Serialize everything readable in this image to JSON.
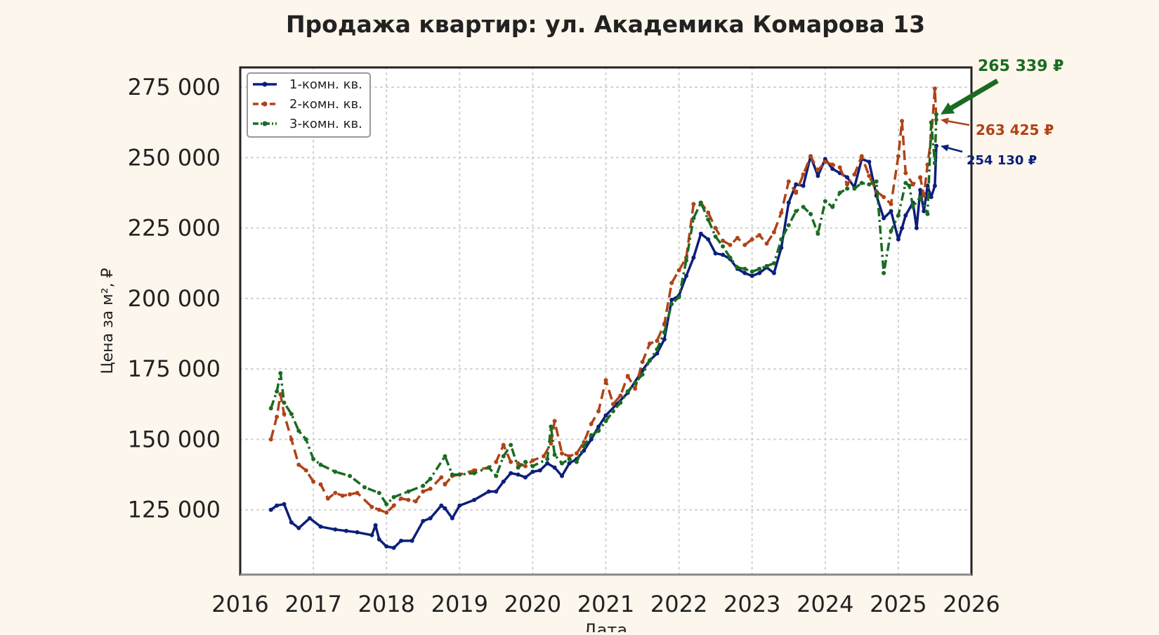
{
  "chart_data": {
    "type": "line",
    "title": "Продажа квартир: ул. Академика Комарова 13",
    "xlabel": "Дата",
    "ylabel": "Цена за м², ₽",
    "xlim": [
      2016,
      2026
    ],
    "ylim": [
      102000,
      282000
    ],
    "x_ticks": [
      "2016",
      "2017",
      "2018",
      "2019",
      "2020",
      "2021",
      "2022",
      "2023",
      "2024",
      "2025",
      "2026"
    ],
    "y_ticks": [
      "125 000",
      "150 000",
      "175 000",
      "200 000",
      "225 000",
      "250 000",
      "275 000"
    ],
    "y_tick_values": [
      125000,
      150000,
      175000,
      200000,
      225000,
      250000,
      275000
    ],
    "grid": true,
    "legend_position": "top-left",
    "series": [
      {
        "name": "1-комн. кв.",
        "color": "#0b1f7a",
        "style": "solid",
        "x": [
          2016.42,
          2016.5,
          2016.6,
          2016.7,
          2016.8,
          2016.95,
          2017.1,
          2017.3,
          2017.45,
          2017.6,
          2017.8,
          2017.85,
          2017.9,
          2018.0,
          2018.1,
          2018.2,
          2018.35,
          2018.5,
          2018.6,
          2018.75,
          2018.8,
          2018.9,
          2019.0,
          2019.2,
          2019.4,
          2019.5,
          2019.6,
          2019.7,
          2019.8,
          2019.9,
          2020.0,
          2020.1,
          2020.2,
          2020.3,
          2020.4,
          2020.5,
          2020.6,
          2020.7,
          2020.8,
          2020.9,
          2021.0,
          2021.15,
          2021.3,
          2021.5,
          2021.6,
          2021.7,
          2021.8,
          2021.9,
          2022.0,
          2022.1,
          2022.2,
          2022.3,
          2022.4,
          2022.5,
          2022.6,
          2022.7,
          2022.8,
          2022.9,
          2023.0,
          2023.1,
          2023.2,
          2023.3,
          2023.4,
          2023.5,
          2023.6,
          2023.7,
          2023.8,
          2023.9,
          2024.0,
          2024.1,
          2024.2,
          2024.3,
          2024.4,
          2024.5,
          2024.6,
          2024.7,
          2024.8,
          2024.9,
          2025.0,
          2025.05,
          2025.1,
          2025.2,
          2025.25,
          2025.3,
          2025.35,
          2025.4,
          2025.45,
          2025.5,
          2025.52
        ],
        "y": [
          125000,
          126500,
          127000,
          120500,
          118500,
          122000,
          119000,
          118000,
          117500,
          117000,
          116000,
          119500,
          114500,
          112000,
          111500,
          114000,
          114000,
          121000,
          122000,
          126500,
          125500,
          122000,
          126500,
          128500,
          131500,
          131500,
          135000,
          138000,
          137500,
          136500,
          138500,
          139000,
          141500,
          140000,
          137000,
          141500,
          143000,
          146000,
          150000,
          154500,
          158500,
          162500,
          166500,
          174500,
          178000,
          180500,
          185500,
          199500,
          201000,
          208000,
          214500,
          223000,
          221000,
          216000,
          215500,
          214000,
          210500,
          209000,
          208000,
          209000,
          211000,
          209000,
          218000,
          234000,
          240500,
          240000,
          250500,
          243500,
          249500,
          246000,
          244500,
          243000,
          239500,
          249500,
          248500,
          236500,
          228500,
          231000,
          221000,
          225000,
          229500,
          234000,
          225000,
          238500,
          231000,
          240000,
          236000,
          240000,
          254130
        ]
      },
      {
        "name": "2-комн. кв.",
        "color": "#b04318",
        "style": "dashed",
        "x": [
          2016.42,
          2016.5,
          2016.55,
          2016.6,
          2016.7,
          2016.8,
          2016.9,
          2017.0,
          2017.1,
          2017.2,
          2017.3,
          2017.4,
          2017.5,
          2017.6,
          2017.8,
          2017.9,
          2018.0,
          2018.1,
          2018.2,
          2018.3,
          2018.4,
          2018.5,
          2018.6,
          2018.75,
          2018.8,
          2018.9,
          2019.0,
          2019.2,
          2019.4,
          2019.5,
          2019.6,
          2019.7,
          2019.8,
          2019.9,
          2020.0,
          2020.15,
          2020.25,
          2020.3,
          2020.4,
          2020.5,
          2020.6,
          2020.7,
          2020.8,
          2020.9,
          2021.0,
          2021.1,
          2021.2,
          2021.3,
          2021.4,
          2021.5,
          2021.6,
          2021.7,
          2021.8,
          2021.9,
          2022.0,
          2022.1,
          2022.2,
          2022.3,
          2022.4,
          2022.5,
          2022.6,
          2022.7,
          2022.8,
          2022.9,
          2023.0,
          2023.1,
          2023.2,
          2023.3,
          2023.4,
          2023.5,
          2023.6,
          2023.7,
          2023.8,
          2023.9,
          2024.0,
          2024.1,
          2024.2,
          2024.3,
          2024.4,
          2024.5,
          2024.6,
          2024.7,
          2024.8,
          2024.9,
          2025.0,
          2025.05,
          2025.1,
          2025.2,
          2025.3,
          2025.35,
          2025.4,
          2025.45,
          2025.5,
          2025.52
        ],
        "y": [
          150000,
          158000,
          166000,
          159000,
          150000,
          141000,
          139000,
          135000,
          134000,
          129000,
          131000,
          130000,
          130500,
          131000,
          126000,
          125000,
          124000,
          126500,
          129000,
          128500,
          128000,
          131500,
          132500,
          136500,
          134000,
          137000,
          137500,
          139000,
          140000,
          142000,
          148000,
          142000,
          141500,
          140500,
          142500,
          144000,
          148500,
          156500,
          145000,
          144000,
          145000,
          149000,
          155500,
          160000,
          171000,
          162500,
          165500,
          172500,
          168000,
          177500,
          184000,
          185000,
          191000,
          205500,
          210000,
          214500,
          233500,
          234000,
          230500,
          225000,
          220500,
          219000,
          221500,
          219000,
          221000,
          222500,
          219500,
          223500,
          230500,
          241500,
          237500,
          244000,
          250500,
          245500,
          248500,
          247500,
          246500,
          240500,
          244000,
          250500,
          243500,
          238000,
          236000,
          233500,
          250500,
          263000,
          244500,
          240500,
          243000,
          236500,
          247500,
          257000,
          274500,
          263425
        ]
      },
      {
        "name": "3-комн. кв.",
        "color": "#1a6b22",
        "style": "dashdot",
        "x": [
          2016.42,
          2016.5,
          2016.55,
          2016.6,
          2016.7,
          2016.8,
          2016.9,
          2017.0,
          2017.1,
          2017.3,
          2017.5,
          2017.7,
          2017.9,
          2018.0,
          2018.1,
          2018.3,
          2018.5,
          2018.6,
          2018.8,
          2018.9,
          2019.0,
          2019.2,
          2019.4,
          2019.5,
          2019.6,
          2019.7,
          2019.8,
          2019.9,
          2020.0,
          2020.2,
          2020.25,
          2020.3,
          2020.4,
          2020.5,
          2020.6,
          2020.7,
          2020.8,
          2020.9,
          2021.0,
          2021.1,
          2021.2,
          2021.3,
          2021.4,
          2021.5,
          2021.6,
          2021.7,
          2021.8,
          2021.9,
          2022.0,
          2022.1,
          2022.2,
          2022.3,
          2022.4,
          2022.5,
          2022.6,
          2022.7,
          2022.8,
          2022.9,
          2023.0,
          2023.1,
          2023.2,
          2023.3,
          2023.4,
          2023.5,
          2023.6,
          2023.7,
          2023.8,
          2023.9,
          2024.0,
          2024.1,
          2024.2,
          2024.3,
          2024.4,
          2024.5,
          2024.6,
          2024.7,
          2024.8,
          2024.9,
          2025.0,
          2025.1,
          2025.15,
          2025.2,
          2025.3,
          2025.4,
          2025.45,
          2025.5,
          2025.52
        ],
        "y": [
          161000,
          167000,
          173500,
          163000,
          159000,
          153000,
          150000,
          143000,
          141000,
          138500,
          137000,
          133000,
          131000,
          127000,
          129500,
          131500,
          133500,
          136000,
          144000,
          137500,
          137500,
          138000,
          140000,
          137000,
          144000,
          148000,
          140000,
          142000,
          140500,
          143000,
          154500,
          144500,
          141500,
          143000,
          142000,
          147500,
          151500,
          153000,
          156500,
          160000,
          163000,
          167000,
          170000,
          173000,
          178000,
          182000,
          188000,
          198000,
          200500,
          213500,
          228500,
          234000,
          228000,
          222000,
          218500,
          214500,
          211000,
          210500,
          209500,
          210500,
          211500,
          212500,
          221000,
          226000,
          231000,
          232500,
          230000,
          223000,
          234500,
          232500,
          237500,
          239000,
          239000,
          241000,
          240500,
          241500,
          209000,
          224000,
          229500,
          241000,
          240000,
          232500,
          236000,
          230000,
          262500,
          248000,
          265339
        ]
      }
    ],
    "annotations": [
      {
        "series": "3-комн. кв.",
        "text": "265 339 ₽",
        "color": "#1a6b22"
      },
      {
        "series": "2-комн. кв.",
        "text": "263 425 ₽",
        "color": "#b04318"
      },
      {
        "series": "1-комн. кв.",
        "text": "254 130 ₽",
        "color": "#0b1f7a"
      }
    ]
  }
}
